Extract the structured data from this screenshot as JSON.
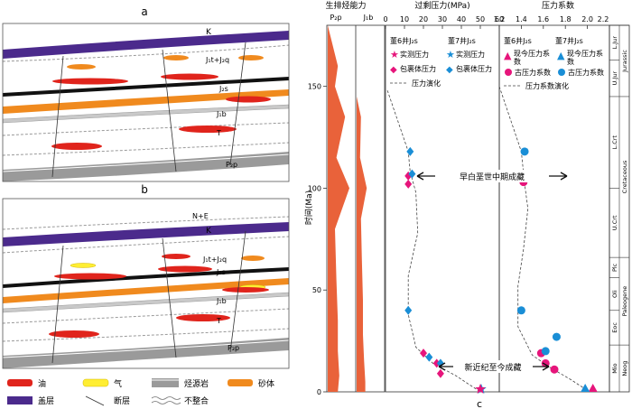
{
  "panels": {
    "a": "a",
    "b": "b",
    "c": "c"
  },
  "section_labels": {
    "a": {
      "K": "K",
      "JtJq": "J₁t+J₂q",
      "Js": "J₂s",
      "Jb": "J₁b",
      "T": "T",
      "Pp": "P₂p"
    },
    "b": {
      "NE": "N+E",
      "K": "K",
      "JtJq": "J₁t+J₂q",
      "Js": "J₂s",
      "Jb": "J₁b",
      "T": "T",
      "Pp": "P₂p"
    }
  },
  "legend": {
    "oil": "油",
    "gas": "气",
    "source_rock": "烃源岩",
    "sand": "砂体",
    "cap": "盖层",
    "fault": "断层",
    "unconformity": "不整合"
  },
  "colors": {
    "oil": "#e0241c",
    "gas": "#ffee33",
    "sand": "#f08a1e",
    "cap": "#4b2a8c",
    "source_rock": "#8c8c8c",
    "generation_curve": "#e9623a",
    "point_well6": "#e6157b",
    "point_well7": "#1a8ed6"
  },
  "chart": {
    "header_generation": "生排烃能力",
    "header_overpressure": "过剩压力(MPa)",
    "header_coefficient": "压力系数",
    "col_pp": "P₂p",
    "col_jb": "J₁b",
    "ylabel": "时间(Ma)",
    "pressure_ticks": [
      "0",
      "10",
      "20",
      "30",
      "40",
      "50",
      "60"
    ],
    "coef_ticks": [
      "1.2",
      "1.4",
      "1.6",
      "1.8",
      "2.0",
      "2.2"
    ],
    "time_ticks": [
      "0",
      "50",
      "100",
      "150"
    ],
    "legend_pressure": {
      "well6": "董6井J₂s",
      "well7": "董7井J₂s",
      "measured6": "实测压力",
      "measured7": "实测压力",
      "fluid6": "包裹体压力",
      "fluid7": "包裹体压力",
      "evolution": "压力演化"
    },
    "legend_coef": {
      "well6": "董6井J₂s",
      "well7": "董7井J₂s",
      "present6": "现今压力系数",
      "present7": "现今压力系数",
      "paleo6": "古压力系数",
      "paleo7": "古压力系数",
      "evolution": "压力系数演化"
    },
    "annotation_early": "早白垩世中期成藏",
    "annotation_late": "新近纪至今成藏",
    "epochs": [
      "Mio",
      "Eoc",
      "Oli",
      "Plc",
      "U.Crt",
      "L.Crt",
      "U.Jur",
      "L.Jur"
    ],
    "periods": [
      "Neog",
      "Paleogene",
      "Cretaceous",
      "Jurassic"
    ]
  },
  "chart_data": {
    "type": "scatter",
    "y_axis": {
      "label": "时间(Ma)",
      "range": [
        0,
        180
      ]
    },
    "overpressure": {
      "x_label": "过剩压力(MPa)",
      "x_range": [
        0,
        60
      ],
      "series": [
        {
          "name": "董6井J₂s 实测压力",
          "points": [
            [
              50,
              0
            ]
          ]
        },
        {
          "name": "董7井J₂s 实测压力",
          "points": [
            [
              50,
              0
            ]
          ]
        },
        {
          "name": "董6井J₂s 包裹体压力",
          "points": [
            [
              12,
              106
            ],
            [
              12,
              102
            ],
            [
              20,
              19
            ],
            [
              27,
              14
            ],
            [
              29,
              9
            ]
          ]
        },
        {
          "name": "董7井J₂s 包裹体压力",
          "points": [
            [
              13,
              118
            ],
            [
              14,
              107
            ],
            [
              12,
              40
            ],
            [
              23,
              17
            ],
            [
              29,
              14
            ]
          ]
        },
        {
          "name": "压力演化",
          "points": [
            [
              1,
              148
            ],
            [
              12,
              118
            ],
            [
              13,
              108
            ],
            [
              16,
              98
            ],
            [
              17,
              78
            ],
            [
              12,
              57
            ],
            [
              12,
              38
            ],
            [
              16,
              22
            ],
            [
              25,
              14
            ],
            [
              37,
              8
            ],
            [
              50,
              0
            ]
          ]
        }
      ]
    },
    "pressure_coefficient": {
      "x_label": "压力系数",
      "x_range": [
        1.2,
        2.2
      ],
      "series": [
        {
          "name": "董6井J₂s 现今压力系数",
          "points": [
            [
              2.05,
              0
            ]
          ]
        },
        {
          "name": "董7井J₂s 现今压力系数",
          "points": [
            [
              1.98,
              0
            ]
          ]
        },
        {
          "name": "董6井J₂s 古压力系数",
          "points": [
            [
              1.43,
              105
            ],
            [
              1.42,
              103
            ],
            [
              1.58,
              19
            ],
            [
              1.62,
              14
            ],
            [
              1.7,
              11
            ]
          ]
        },
        {
          "name": "董7井J₂s 古压力系数",
          "points": [
            [
              1.43,
              118
            ],
            [
              1.4,
              40
            ],
            [
              1.72,
              27
            ],
            [
              1.62,
              20
            ]
          ]
        },
        {
          "name": "压力系数演化",
          "points": [
            [
              1.2,
              150
            ],
            [
              1.4,
              118
            ],
            [
              1.43,
              102
            ],
            [
              1.46,
              90
            ],
            [
              1.42,
              70
            ],
            [
              1.37,
              52
            ],
            [
              1.37,
              32
            ],
            [
              1.5,
              18
            ],
            [
              1.66,
              12
            ],
            [
              1.85,
              6
            ],
            [
              2.02,
              0
            ]
          ]
        }
      ]
    },
    "generation": [
      {
        "name": "P₂p",
        "profile": [
          [
            180,
            0
          ],
          [
            160,
            0.35
          ],
          [
            150,
            0.25
          ],
          [
            135,
            0.6
          ],
          [
            115,
            0.3
          ],
          [
            100,
            0.75
          ],
          [
            80,
            0.25
          ],
          [
            55,
            0.3
          ],
          [
            35,
            0.35
          ],
          [
            20,
            0.35
          ],
          [
            8,
            0.4
          ],
          [
            0,
            0.35
          ]
        ]
      },
      {
        "name": "J₁b",
        "profile": [
          [
            145,
            0
          ],
          [
            135,
            0.15
          ],
          [
            115,
            0.12
          ],
          [
            100,
            0.35
          ],
          [
            85,
            0.15
          ],
          [
            65,
            0.18
          ],
          [
            45,
            0.22
          ],
          [
            28,
            0.22
          ],
          [
            15,
            0.26
          ],
          [
            5,
            0.3
          ],
          [
            0,
            0.3
          ]
        ]
      }
    ]
  }
}
